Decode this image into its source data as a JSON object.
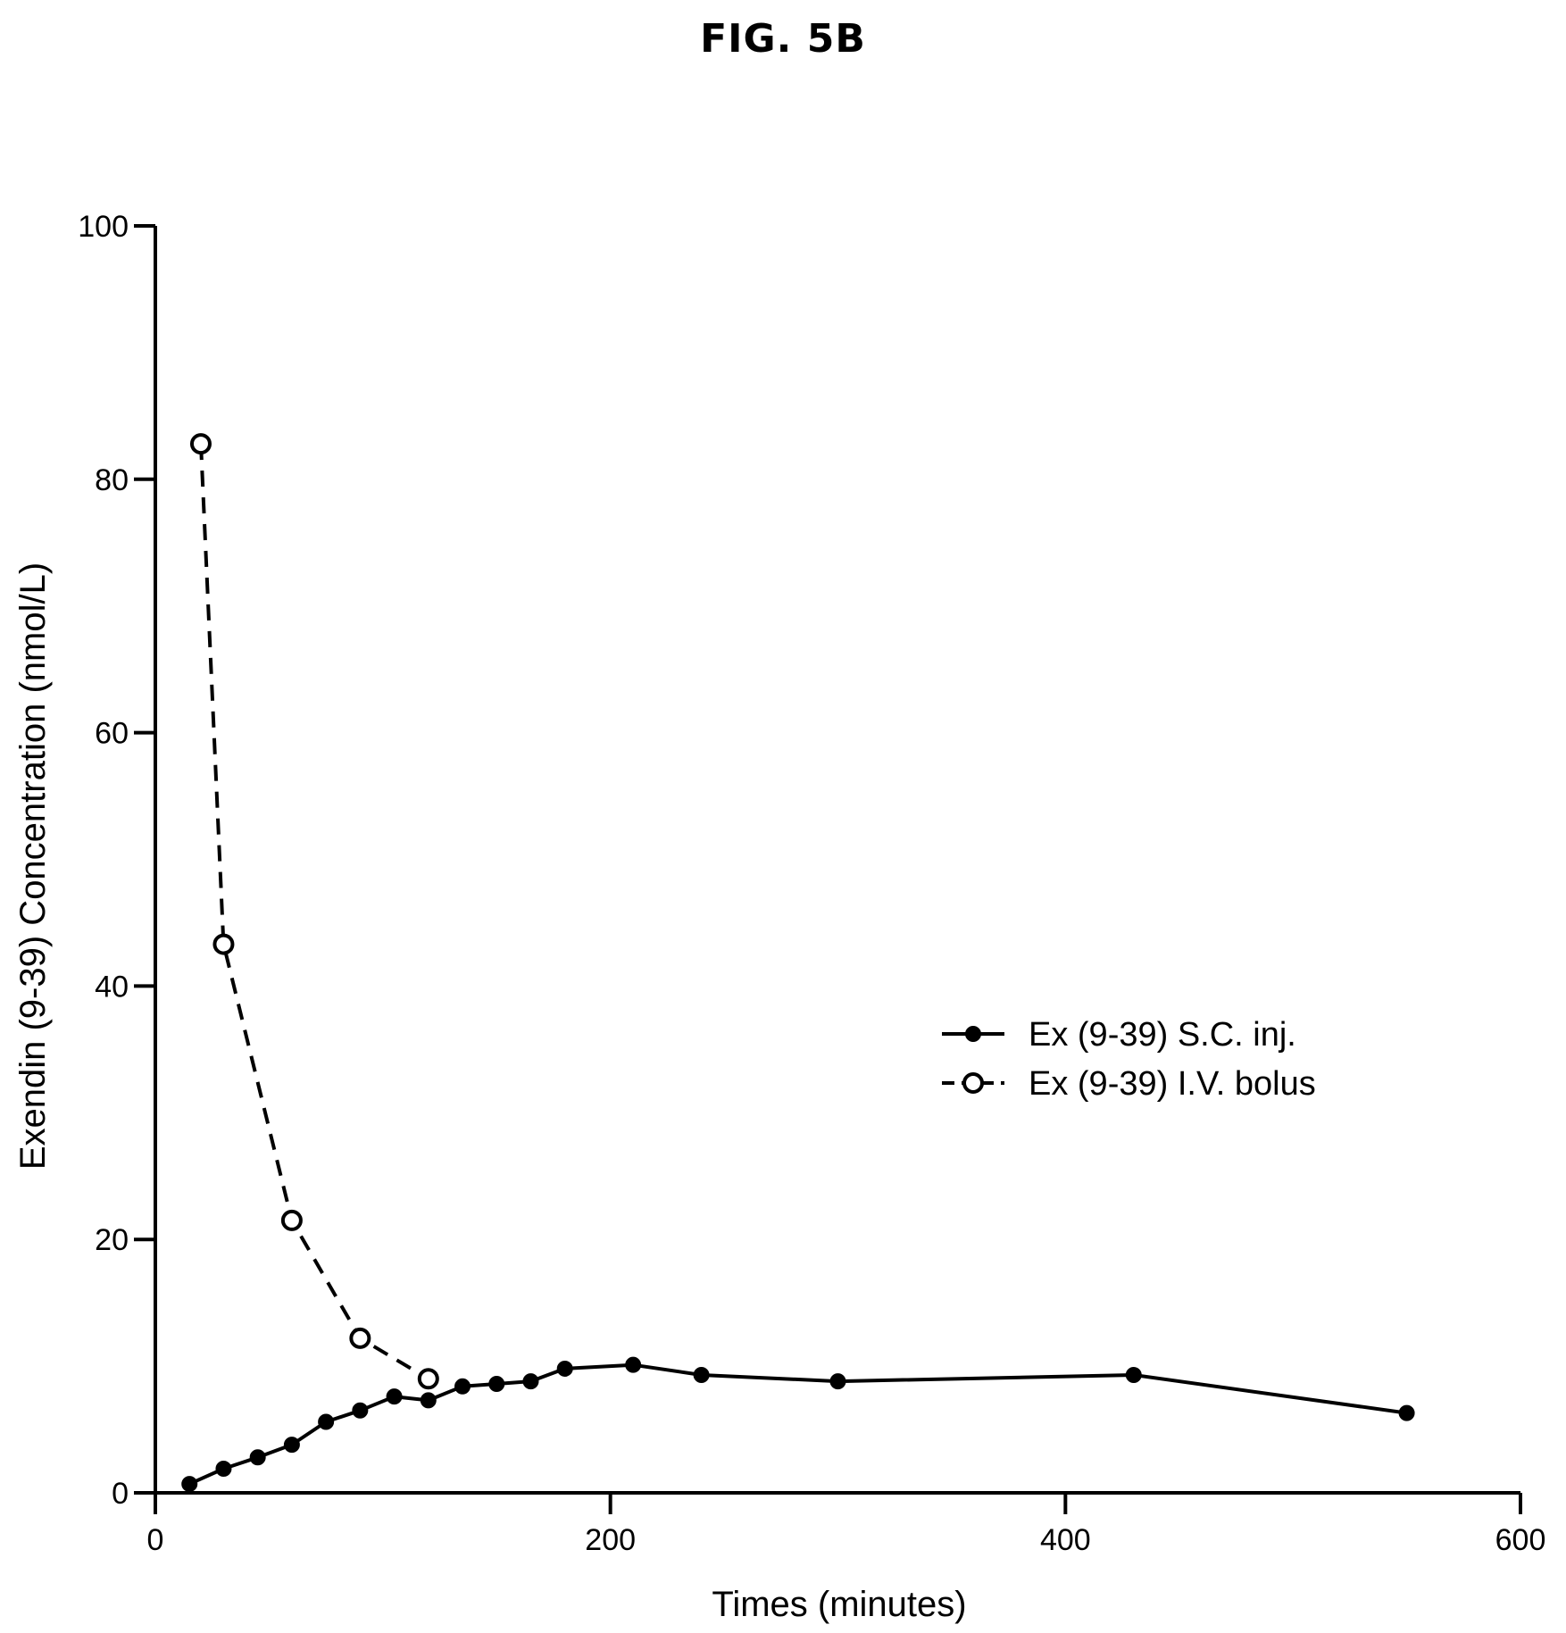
{
  "figure_label": "FIG. 5B",
  "chart_data": {
    "type": "line",
    "xlabel": "Times (minutes)",
    "ylabel": "Exendin (9-39) Concentration (nmol/L)",
    "xlim": [
      0,
      600
    ],
    "ylim": [
      0,
      100
    ],
    "xticks": [
      0,
      200,
      400,
      600
    ],
    "yticks": [
      0,
      20,
      40,
      60,
      80,
      100
    ],
    "grid": false,
    "legend_position": "right-middle",
    "series": [
      {
        "name": "Ex (9-39) S.C. inj.",
        "line_style": "solid",
        "marker": "filled-circle",
        "color": "#000000",
        "x": [
          15,
          30,
          45,
          60,
          75,
          90,
          105,
          120,
          135,
          150,
          165,
          180,
          210,
          240,
          300,
          430,
          550
        ],
        "y": [
          0.7,
          1.9,
          2.8,
          3.8,
          5.6,
          6.5,
          7.6,
          7.3,
          8.4,
          8.6,
          8.8,
          9.8,
          10.1,
          9.3,
          8.8,
          9.3,
          6.3
        ]
      },
      {
        "name": "Ex (9-39) I.V. bolus",
        "line_style": "dashed",
        "marker": "open-circle",
        "color": "#000000",
        "x": [
          20,
          30,
          60,
          90,
          120
        ],
        "y": [
          82.8,
          43.3,
          21.5,
          12.2,
          9.0
        ]
      }
    ]
  }
}
